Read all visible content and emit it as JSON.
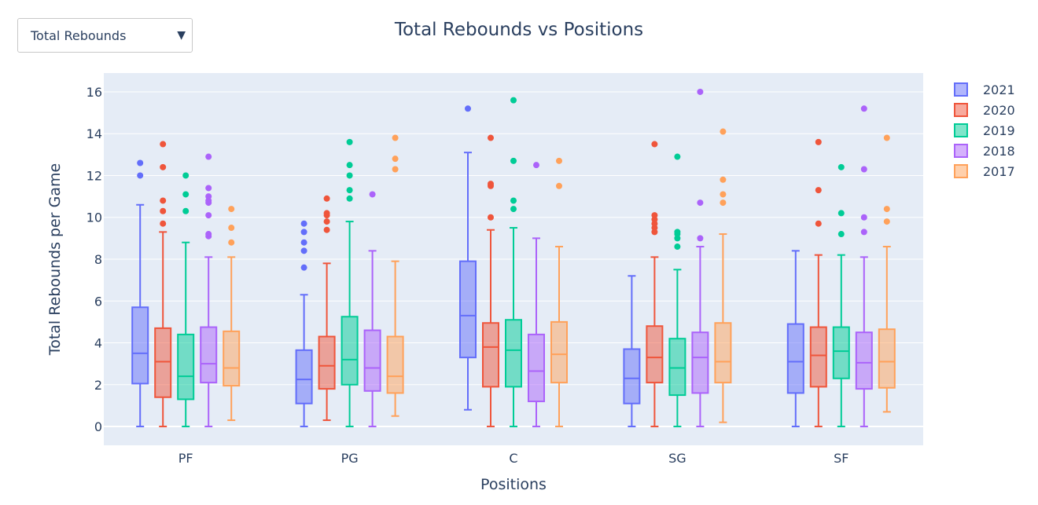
{
  "dropdown": {
    "selected": "Total Rebounds"
  },
  "chart_data": {
    "type": "box",
    "title": "Total Rebounds vs Positions",
    "xlabel": "Positions",
    "ylabel": "Total Rebounds per Game",
    "ylim": [
      -0.9,
      16.9
    ],
    "yticks": [
      0,
      2,
      4,
      6,
      8,
      10,
      12,
      14,
      16
    ],
    "categories": [
      "PF",
      "PG",
      "C",
      "SG",
      "SF"
    ],
    "grid": true,
    "legend_position": "top-right",
    "series": [
      {
        "name": "2021",
        "color": "#636efa",
        "boxes": [
          {
            "min": 0,
            "q1": 2.05,
            "median": 3.5,
            "q3": 5.7,
            "max": 10.6,
            "outliers": [
              12.0,
              12.6
            ]
          },
          {
            "min": 0,
            "q1": 1.1,
            "median": 2.25,
            "q3": 3.65,
            "max": 6.3,
            "outliers": [
              7.6,
              8.4,
              8.8,
              9.3,
              9.7
            ]
          },
          {
            "min": 0.8,
            "q1": 3.3,
            "median": 5.3,
            "q3": 7.9,
            "max": 13.1,
            "outliers": [
              15.2
            ]
          },
          {
            "min": 0,
            "q1": 1.1,
            "median": 2.3,
            "q3": 3.7,
            "max": 7.2,
            "outliers": []
          },
          {
            "min": 0,
            "q1": 1.6,
            "median": 3.1,
            "q3": 4.9,
            "max": 8.4,
            "outliers": []
          }
        ]
      },
      {
        "name": "2020",
        "color": "#ef553b",
        "boxes": [
          {
            "min": 0,
            "q1": 1.4,
            "median": 3.1,
            "q3": 4.7,
            "max": 9.3,
            "outliers": [
              9.7,
              10.3,
              10.8,
              12.4,
              13.5
            ]
          },
          {
            "min": 0.3,
            "q1": 1.8,
            "median": 2.9,
            "q3": 4.3,
            "max": 7.8,
            "outliers": [
              9.4,
              9.8,
              10.1,
              10.2,
              10.9
            ]
          },
          {
            "min": 0,
            "q1": 1.9,
            "median": 3.8,
            "q3": 4.95,
            "max": 9.4,
            "outliers": [
              10.0,
              11.5,
              11.6,
              13.8
            ]
          },
          {
            "min": 0,
            "q1": 2.1,
            "median": 3.3,
            "q3": 4.8,
            "max": 8.1,
            "outliers": [
              9.3,
              9.5,
              9.7,
              9.9,
              10.1,
              13.5
            ]
          },
          {
            "min": 0,
            "q1": 1.9,
            "median": 3.4,
            "q3": 4.75,
            "max": 8.2,
            "outliers": [
              9.7,
              11.3,
              13.6
            ]
          }
        ]
      },
      {
        "name": "2019",
        "color": "#00cc96",
        "boxes": [
          {
            "min": 0,
            "q1": 1.3,
            "median": 2.4,
            "q3": 4.4,
            "max": 8.8,
            "outliers": [
              10.3,
              11.1,
              12.0
            ]
          },
          {
            "min": 0,
            "q1": 2.0,
            "median": 3.2,
            "q3": 5.25,
            "max": 9.8,
            "outliers": [
              10.9,
              11.3,
              12.0,
              12.5,
              13.6
            ]
          },
          {
            "min": 0,
            "q1": 1.9,
            "median": 3.65,
            "q3": 5.1,
            "max": 9.5,
            "outliers": [
              10.4,
              10.8,
              12.7,
              15.6
            ]
          },
          {
            "min": 0,
            "q1": 1.5,
            "median": 2.8,
            "q3": 4.2,
            "max": 7.5,
            "outliers": [
              8.6,
              9.0,
              9.2,
              9.3,
              12.9
            ]
          },
          {
            "min": 0,
            "q1": 2.3,
            "median": 3.6,
            "q3": 4.75,
            "max": 8.2,
            "outliers": [
              9.2,
              10.2,
              12.4
            ]
          }
        ]
      },
      {
        "name": "2018",
        "color": "#ab63fa",
        "boxes": [
          {
            "min": 0,
            "q1": 2.1,
            "median": 3.0,
            "q3": 4.75,
            "max": 8.1,
            "outliers": [
              9.1,
              9.2,
              10.1,
              10.7,
              10.8,
              11.0,
              11.4,
              12.9
            ]
          },
          {
            "min": 0,
            "q1": 1.7,
            "median": 2.8,
            "q3": 4.6,
            "max": 8.4,
            "outliers": [
              11.1
            ]
          },
          {
            "min": 0,
            "q1": 1.2,
            "median": 2.65,
            "q3": 4.4,
            "max": 9.0,
            "outliers": [
              12.5
            ]
          },
          {
            "min": 0,
            "q1": 1.6,
            "median": 3.3,
            "q3": 4.5,
            "max": 8.6,
            "outliers": [
              9.0,
              10.7,
              16.0
            ]
          },
          {
            "min": 0,
            "q1": 1.8,
            "median": 3.05,
            "q3": 4.5,
            "max": 8.1,
            "outliers": [
              9.3,
              10.0,
              12.3,
              15.2
            ]
          }
        ]
      },
      {
        "name": "2017",
        "color": "#ffa15a",
        "boxes": [
          {
            "min": 0.3,
            "q1": 1.95,
            "median": 2.8,
            "q3": 4.55,
            "max": 8.1,
            "outliers": [
              8.8,
              9.5,
              10.4
            ]
          },
          {
            "min": 0.5,
            "q1": 1.6,
            "median": 2.4,
            "q3": 4.3,
            "max": 7.9,
            "outliers": [
              12.3,
              12.8,
              13.8
            ]
          },
          {
            "min": 0,
            "q1": 2.1,
            "median": 3.45,
            "q3": 5.0,
            "max": 8.6,
            "outliers": [
              11.5,
              12.7
            ]
          },
          {
            "min": 0.2,
            "q1": 2.1,
            "median": 3.1,
            "q3": 4.95,
            "max": 9.2,
            "outliers": [
              10.7,
              11.1,
              11.8,
              14.1
            ]
          },
          {
            "min": 0.7,
            "q1": 1.85,
            "median": 3.1,
            "q3": 4.65,
            "max": 8.6,
            "outliers": [
              9.8,
              10.4,
              13.8
            ]
          }
        ]
      }
    ]
  }
}
